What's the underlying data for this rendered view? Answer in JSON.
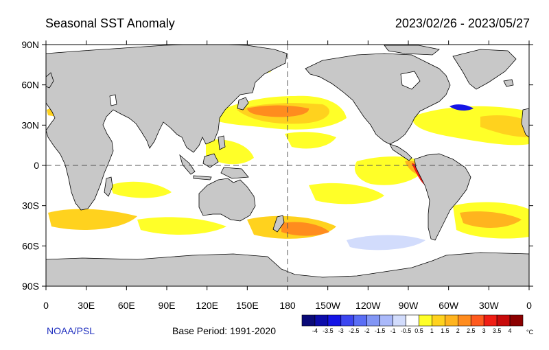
{
  "header": {
    "title": "Seasonal SST Anomaly",
    "date_range": "2023/02/26 - 2023/05/27"
  },
  "footer": {
    "source": "NOAA/PSL",
    "base_period": "Base Period: 1991-2020"
  },
  "map": {
    "lat_ticks": [
      "90N",
      "60N",
      "30N",
      "0",
      "30S",
      "60S",
      "90S"
    ],
    "lon_ticks": [
      "0",
      "30E",
      "60E",
      "90E",
      "120E",
      "150E",
      "180",
      "150W",
      "120W",
      "90W",
      "60W",
      "30W",
      "0"
    ],
    "colors": {
      "land": "#c8c8c8",
      "ocean": "#ffffff",
      "coast": "#000000"
    }
  },
  "colorbar": {
    "unit": "°C",
    "labels": [
      "-4",
      "-3.5",
      "-3",
      "-2.5",
      "-2",
      "-1.5",
      "-1",
      "-0.5",
      "0.5",
      "1",
      "1.5",
      "2",
      "2.5",
      "3",
      "3.5",
      "4"
    ],
    "colors": [
      "#0a0a78",
      "#0c0caa",
      "#1414e6",
      "#3c46f0",
      "#5a6ef5",
      "#8296f5",
      "#aab9fa",
      "#d2dcfc",
      "#ffffff",
      "#ffff28",
      "#ffd21e",
      "#ffb41e",
      "#ff8c1e",
      "#ff5a1e",
      "#f01e14",
      "#c80a0a",
      "#8c0000"
    ]
  }
}
